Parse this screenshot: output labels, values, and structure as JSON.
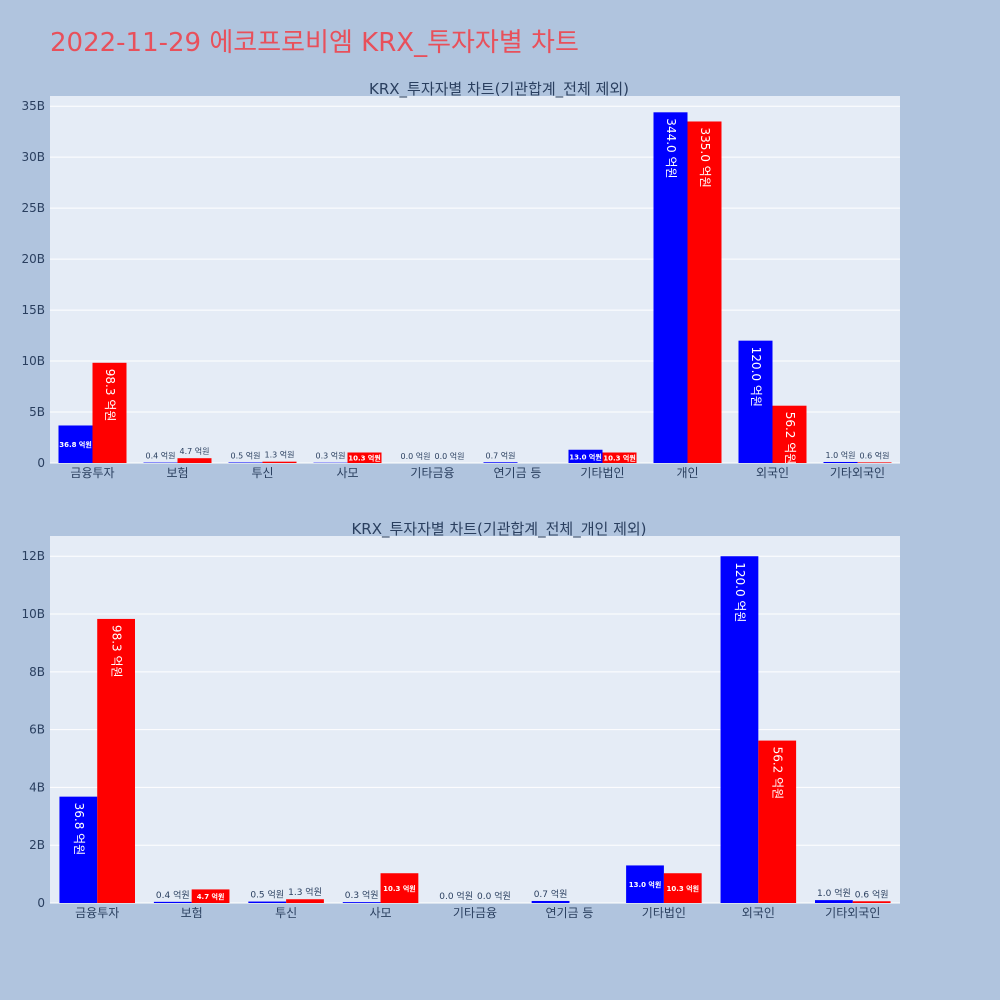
{
  "page": {
    "title": "2022-11-29 에코프로비엠 KRX_투자자별 차트"
  },
  "colors": {
    "background": "#b0c4de",
    "plot_background": "#e5ecf6",
    "title": "#e8505b",
    "buy": "#0000ff",
    "sell": "#ff0000",
    "grid": "#ffffff",
    "text": "#2a3f5f"
  },
  "chart_data": [
    {
      "type": "bar",
      "title": "KRX_투자자별 차트(기관합계_전체 제외)",
      "categories": [
        "금융투자",
        "보험",
        "투신",
        "사모",
        "기타금융",
        "연기금 등",
        "기타법인",
        "개인",
        "외국인",
        "기타외국인"
      ],
      "series": [
        {
          "color": "#0000ff",
          "values": [
            3680000000,
            40000000,
            50000000,
            30000000,
            0,
            70000000,
            1300000000,
            34400000000,
            12000000000,
            100000000
          ],
          "labels": [
            "36.8 억원",
            "0.4 억원",
            "0.5 억원",
            "0.3 억원",
            "0.0 억원",
            "0.7 억원",
            "13.0 억원",
            "344.0 억원",
            "120.0 억원",
            "1.0 억원"
          ]
        },
        {
          "color": "#ff0000",
          "values": [
            9830000000,
            470000000,
            130000000,
            1030000000,
            0,
            0,
            1030000000,
            33500000000,
            5620000000,
            60000000
          ],
          "labels": [
            "98.3 억원",
            "4.7 억원",
            "1.3 억원",
            "10.3 억원",
            "0.0 억원",
            "",
            "10.3 억원",
            "335.0 억원",
            "56.2 억원",
            "0.6 억원"
          ]
        }
      ],
      "ylim": [
        0,
        36000000000
      ],
      "yticks": [
        0,
        5000000000,
        10000000000,
        15000000000,
        20000000000,
        25000000000,
        30000000000,
        35000000000
      ],
      "ytick_labels": [
        "0",
        "5B",
        "10B",
        "15B",
        "20B",
        "25B",
        "30B",
        "35B"
      ],
      "grid": true,
      "barmode": "group"
    },
    {
      "type": "bar",
      "title": "KRX_투자자별 차트(기관합계_전체_개인 제외)",
      "categories": [
        "금융투자",
        "보험",
        "투신",
        "사모",
        "기타금융",
        "연기금 등",
        "기타법인",
        "외국인",
        "기타외국인"
      ],
      "series": [
        {
          "color": "#0000ff",
          "values": [
            3680000000,
            40000000,
            50000000,
            30000000,
            0,
            70000000,
            1300000000,
            12000000000,
            100000000
          ],
          "labels": [
            "36.8 억원",
            "0.4 억원",
            "0.5 억원",
            "0.3 억원",
            "0.0 억원",
            "0.7 억원",
            "13.0 억원",
            "120.0 억원",
            "1.0 억원"
          ]
        },
        {
          "color": "#ff0000",
          "values": [
            9830000000,
            470000000,
            130000000,
            1030000000,
            0,
            0,
            1030000000,
            5620000000,
            60000000
          ],
          "labels": [
            "98.3 억원",
            "4.7 억원",
            "1.3 억원",
            "10.3 억원",
            "0.0 억원",
            "",
            "10.3 억원",
            "56.2 억원",
            "0.6 억원"
          ]
        }
      ],
      "ylim": [
        0,
        12700000000
      ],
      "yticks": [
        0,
        2000000000,
        4000000000,
        6000000000,
        8000000000,
        10000000000,
        12000000000
      ],
      "ytick_labels": [
        "0",
        "2B",
        "4B",
        "6B",
        "8B",
        "10B",
        "12B"
      ],
      "grid": true,
      "barmode": "group"
    }
  ]
}
